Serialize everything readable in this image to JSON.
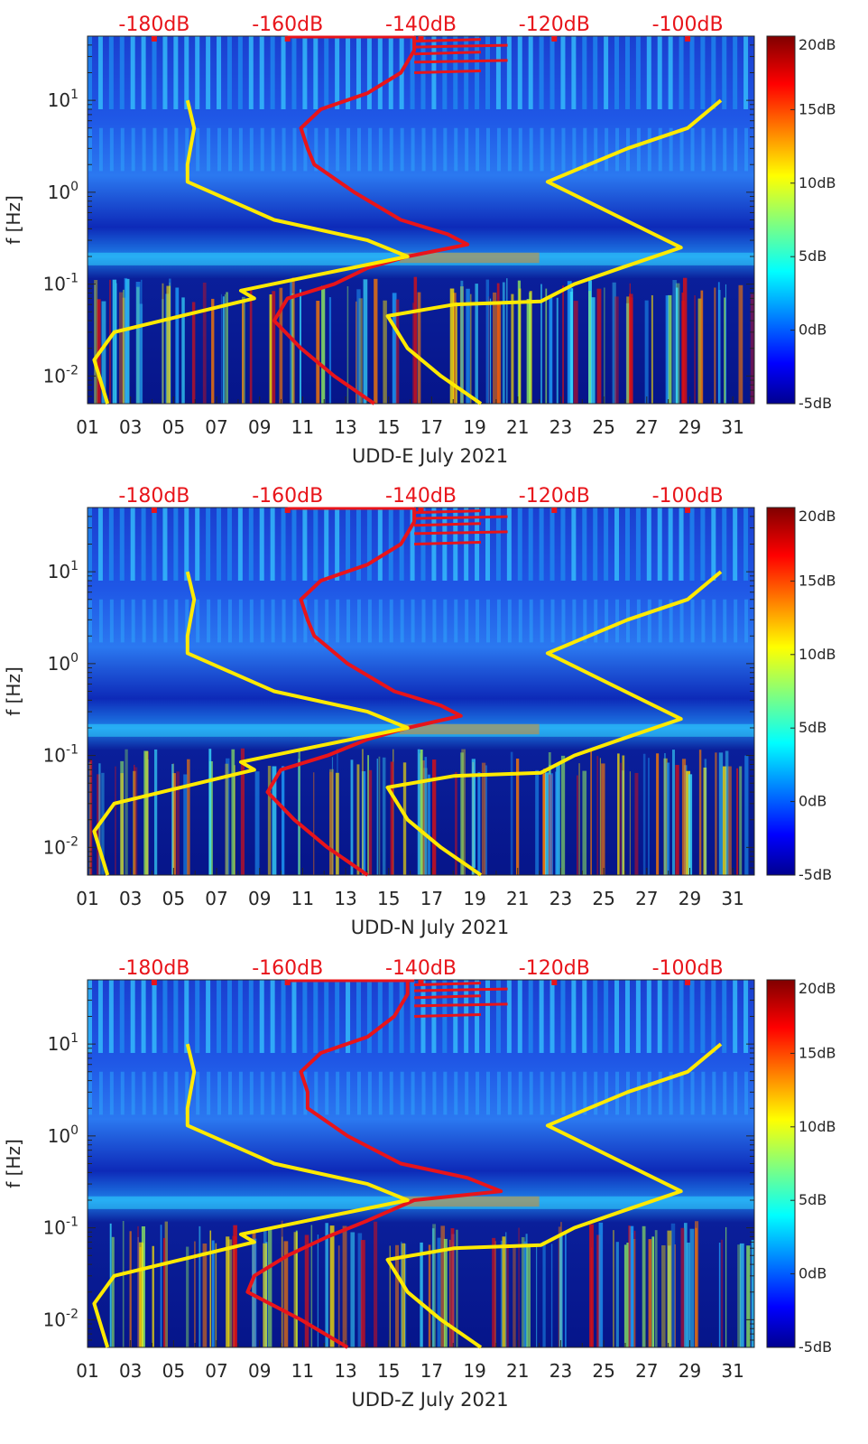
{
  "chart_data": [
    {
      "type": "heatmap",
      "station": "UDD-E",
      "xlabel": "UDD-E July 2021",
      "ylabel": "f [Hz]",
      "x_ticks": [
        "01",
        "03",
        "05",
        "07",
        "09",
        "11",
        "13",
        "15",
        "17",
        "19",
        "21",
        "23",
        "25",
        "27",
        "29",
        "31"
      ],
      "y_ticks": [
        "10^{1}",
        "10^{0}",
        "10^{-1}",
        "10^{-2}"
      ],
      "ylim_hz": [
        0.005,
        50
      ],
      "xlim_days": [
        1,
        32
      ],
      "top_axis_ticks": [
        "-180dB",
        "-160dB",
        "-140dB",
        "-120dB",
        "-100dB"
      ],
      "top_axis_range_db": [
        -190,
        -90
      ],
      "colorbar": {
        "ticks": [
          "20dB",
          "15dB",
          "10dB",
          "5dB",
          "0dB",
          "-5dB"
        ],
        "range_db": [
          -5,
          20
        ],
        "colormap": "jet"
      },
      "series": [
        {
          "name": "red-psd-curve",
          "color": "#e8141a",
          "unit": "dB",
          "points": [
            [
              0.005,
              -147
            ],
            [
              0.01,
              -153
            ],
            [
              0.02,
              -158
            ],
            [
              0.04,
              -162
            ],
            [
              0.07,
              -160
            ],
            [
              0.1,
              -153
            ],
            [
              0.15,
              -148
            ],
            [
              0.2,
              -142
            ],
            [
              0.27,
              -133
            ],
            [
              0.35,
              -136
            ],
            [
              0.5,
              -143
            ],
            [
              1,
              -150
            ],
            [
              2,
              -156
            ],
            [
              3,
              -157
            ],
            [
              5,
              -158
            ],
            [
              8,
              -155
            ],
            [
              12,
              -148
            ],
            [
              20,
              -143
            ],
            [
              35,
              -141
            ],
            [
              50,
              -141
            ]
          ]
        },
        {
          "name": "yellow-noise-model-low",
          "color": "#ffea00",
          "unit": "dB",
          "points": [
            [
              0.005,
              -187
            ],
            [
              0.015,
              -189
            ],
            [
              0.03,
              -186
            ],
            [
              0.045,
              -176
            ],
            [
              0.07,
              -165
            ],
            [
              0.085,
              -167
            ],
            [
              0.12,
              -157
            ],
            [
              0.2,
              -142
            ],
            [
              0.3,
              -148
            ],
            [
              0.5,
              -162
            ],
            [
              1.3,
              -175
            ],
            [
              2,
              -175
            ],
            [
              5,
              -174
            ],
            [
              10,
              -175
            ]
          ]
        },
        {
          "name": "yellow-noise-model-high",
          "color": "#ffea00",
          "unit": "dB",
          "points": [
            [
              0.005,
              -131
            ],
            [
              0.01,
              -137
            ],
            [
              0.02,
              -142
            ],
            [
              0.045,
              -145
            ],
            [
              0.06,
              -135
            ],
            [
              0.065,
              -122
            ],
            [
              0.1,
              -117
            ],
            [
              0.15,
              -110
            ],
            [
              0.25,
              -101
            ],
            [
              1.3,
              -121
            ],
            [
              3,
              -109
            ],
            [
              5,
              -100
            ],
            [
              10,
              -95
            ]
          ]
        }
      ]
    },
    {
      "type": "heatmap",
      "station": "UDD-N",
      "xlabel": "UDD-N July 2021",
      "ylabel": "f [Hz]",
      "x_ticks": [
        "01",
        "03",
        "05",
        "07",
        "09",
        "11",
        "13",
        "15",
        "17",
        "19",
        "21",
        "23",
        "25",
        "27",
        "29",
        "31"
      ],
      "y_ticks": [
        "10^{1}",
        "10^{0}",
        "10^{-1}",
        "10^{-2}"
      ],
      "ylim_hz": [
        0.005,
        50
      ],
      "xlim_days": [
        1,
        32
      ],
      "top_axis_ticks": [
        "-180dB",
        "-160dB",
        "-140dB",
        "-120dB",
        "-100dB"
      ],
      "top_axis_range_db": [
        -190,
        -90
      ],
      "colorbar": {
        "ticks": [
          "20dB",
          "15dB",
          "10dB",
          "5dB",
          "0dB",
          "-5dB"
        ],
        "range_db": [
          -5,
          20
        ],
        "colormap": "jet"
      },
      "series": [
        {
          "name": "red-psd-curve",
          "color": "#e8141a",
          "unit": "dB",
          "points": [
            [
              0.005,
              -148
            ],
            [
              0.01,
              -154
            ],
            [
              0.02,
              -159
            ],
            [
              0.04,
              -163
            ],
            [
              0.07,
              -161
            ],
            [
              0.1,
              -154
            ],
            [
              0.15,
              -148
            ],
            [
              0.2,
              -142
            ],
            [
              0.27,
              -134
            ],
            [
              0.35,
              -137
            ],
            [
              0.5,
              -144
            ],
            [
              1,
              -151
            ],
            [
              2,
              -156
            ],
            [
              3,
              -157
            ],
            [
              5,
              -158
            ],
            [
              8,
              -155
            ],
            [
              12,
              -148
            ],
            [
              20,
              -143
            ],
            [
              35,
              -141
            ],
            [
              50,
              -141
            ]
          ]
        },
        {
          "name": "yellow-noise-model-low",
          "color": "#ffea00",
          "unit": "dB",
          "points": [
            [
              0.005,
              -187
            ],
            [
              0.015,
              -189
            ],
            [
              0.03,
              -186
            ],
            [
              0.045,
              -176
            ],
            [
              0.07,
              -165
            ],
            [
              0.085,
              -167
            ],
            [
              0.12,
              -157
            ],
            [
              0.2,
              -142
            ],
            [
              0.3,
              -148
            ],
            [
              0.5,
              -162
            ],
            [
              1.3,
              -175
            ],
            [
              2,
              -175
            ],
            [
              5,
              -174
            ],
            [
              10,
              -175
            ]
          ]
        },
        {
          "name": "yellow-noise-model-high",
          "color": "#ffea00",
          "unit": "dB",
          "points": [
            [
              0.005,
              -131
            ],
            [
              0.01,
              -137
            ],
            [
              0.02,
              -142
            ],
            [
              0.045,
              -145
            ],
            [
              0.06,
              -135
            ],
            [
              0.065,
              -122
            ],
            [
              0.1,
              -117
            ],
            [
              0.15,
              -110
            ],
            [
              0.25,
              -101
            ],
            [
              1.3,
              -121
            ],
            [
              3,
              -109
            ],
            [
              5,
              -100
            ],
            [
              10,
              -95
            ]
          ]
        }
      ]
    },
    {
      "type": "heatmap",
      "station": "UDD-Z",
      "xlabel": "UDD-Z July 2021",
      "ylabel": "f [Hz]",
      "x_ticks": [
        "01",
        "03",
        "05",
        "07",
        "09",
        "11",
        "13",
        "15",
        "17",
        "19",
        "21",
        "23",
        "25",
        "27",
        "29",
        "31"
      ],
      "y_ticks": [
        "10^{1}",
        "10^{0}",
        "10^{-1}",
        "10^{-2}"
      ],
      "ylim_hz": [
        0.005,
        50
      ],
      "xlim_days": [
        1,
        32
      ],
      "top_axis_ticks": [
        "-180dB",
        "-160dB",
        "-140dB",
        "-120dB",
        "-100dB"
      ],
      "top_axis_range_db": [
        -190,
        -90
      ],
      "colorbar": {
        "ticks": [
          "20dB",
          "15dB",
          "10dB",
          "5dB",
          "0dB",
          "-5dB"
        ],
        "range_db": [
          -5,
          20
        ],
        "colormap": "jet"
      },
      "series": [
        {
          "name": "red-psd-curve",
          "color": "#e8141a",
          "unit": "dB",
          "points": [
            [
              0.005,
              -151
            ],
            [
              0.01,
              -158
            ],
            [
              0.02,
              -166
            ],
            [
              0.03,
              -165
            ],
            [
              0.05,
              -160
            ],
            [
              0.08,
              -154
            ],
            [
              0.12,
              -148
            ],
            [
              0.2,
              -141
            ],
            [
              0.25,
              -128
            ],
            [
              0.35,
              -133
            ],
            [
              0.5,
              -143
            ],
            [
              1,
              -151
            ],
            [
              2,
              -157
            ],
            [
              3,
              -157
            ],
            [
              5,
              -158
            ],
            [
              8,
              -155
            ],
            [
              12,
              -148
            ],
            [
              20,
              -144
            ],
            [
              35,
              -142
            ],
            [
              50,
              -142
            ]
          ]
        },
        {
          "name": "yellow-noise-model-low",
          "color": "#ffea00",
          "unit": "dB",
          "points": [
            [
              0.005,
              -187
            ],
            [
              0.015,
              -189
            ],
            [
              0.03,
              -186
            ],
            [
              0.045,
              -176
            ],
            [
              0.07,
              -165
            ],
            [
              0.085,
              -167
            ],
            [
              0.12,
              -157
            ],
            [
              0.2,
              -142
            ],
            [
              0.3,
              -148
            ],
            [
              0.5,
              -162
            ],
            [
              1.3,
              -175
            ],
            [
              2,
              -175
            ],
            [
              5,
              -174
            ],
            [
              10,
              -175
            ]
          ]
        },
        {
          "name": "yellow-noise-model-high",
          "color": "#ffea00",
          "unit": "dB",
          "points": [
            [
              0.005,
              -131
            ],
            [
              0.01,
              -137
            ],
            [
              0.02,
              -142
            ],
            [
              0.045,
              -145
            ],
            [
              0.06,
              -135
            ],
            [
              0.065,
              -122
            ],
            [
              0.1,
              -117
            ],
            [
              0.15,
              -110
            ],
            [
              0.25,
              -101
            ],
            [
              1.3,
              -121
            ],
            [
              3,
              -109
            ],
            [
              5,
              -100
            ],
            [
              10,
              -95
            ]
          ]
        }
      ]
    }
  ]
}
